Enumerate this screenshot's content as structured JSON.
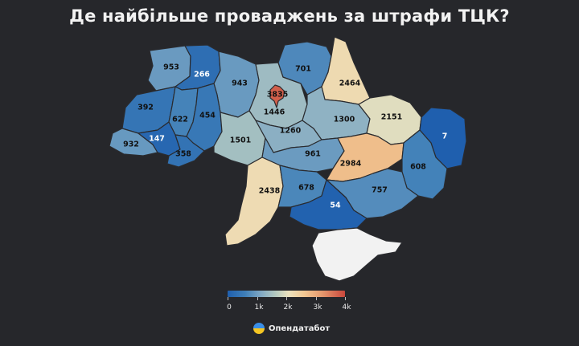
{
  "title": "Де найбільше проваджень за штрафи ТЦК?",
  "colors": {
    "scale": [
      "#1f5fae",
      "#3f7fb8",
      "#7fa8c4",
      "#b9ccc0",
      "#ece2bf",
      "#f2c893",
      "#e59a6f",
      "#c9473c"
    ],
    "no_data": "#f2f2f2",
    "background": "#26272b"
  },
  "legend": {
    "min": 0,
    "max": 4000,
    "ticks": [
      {
        "value": 0,
        "label": "0"
      },
      {
        "value": 1000,
        "label": "1k"
      },
      {
        "value": 2000,
        "label": "2k"
      },
      {
        "value": 3000,
        "label": "3k"
      },
      {
        "value": 4000,
        "label": "4k"
      }
    ]
  },
  "regions": [
    {
      "id": "volyn",
      "value": 953,
      "label": "953"
    },
    {
      "id": "rivne",
      "value": 266,
      "label": "266"
    },
    {
      "id": "zhytomyr",
      "value": 943,
      "label": "943"
    },
    {
      "id": "kyiv-oblast",
      "value": 1446,
      "label": "1446"
    },
    {
      "id": "kyiv-city",
      "value": 3835,
      "label": "3835"
    },
    {
      "id": "chernihiv",
      "value": 701,
      "label": "701"
    },
    {
      "id": "sumy",
      "value": 2464,
      "label": "2464"
    },
    {
      "id": "lviv",
      "value": 392,
      "label": "392"
    },
    {
      "id": "ternopil",
      "value": 622,
      "label": "622"
    },
    {
      "id": "khmelnytskyi",
      "value": 454,
      "label": "454"
    },
    {
      "id": "vinnytsia",
      "value": 1501,
      "label": "1501"
    },
    {
      "id": "cherkasy",
      "value": 1260,
      "label": "1260"
    },
    {
      "id": "poltava",
      "value": 1300,
      "label": "1300"
    },
    {
      "id": "kharkiv",
      "value": 2151,
      "label": "2151"
    },
    {
      "id": "luhansk",
      "value": 7,
      "label": "7"
    },
    {
      "id": "zakarpattia",
      "value": 932,
      "label": "932"
    },
    {
      "id": "ivano-frankivsk",
      "value": 147,
      "label": "147"
    },
    {
      "id": "chernivtsi",
      "value": 358,
      "label": "358"
    },
    {
      "id": "kirovohrad",
      "value": 961,
      "label": "961"
    },
    {
      "id": "dnipropetrovsk",
      "value": 2984,
      "label": "2984"
    },
    {
      "id": "donetsk",
      "value": 608,
      "label": "608"
    },
    {
      "id": "odesa",
      "value": 2438,
      "label": "2438"
    },
    {
      "id": "mykolaiv",
      "value": 678,
      "label": "678"
    },
    {
      "id": "zaporizhzhia",
      "value": 757,
      "label": "757"
    },
    {
      "id": "kherson",
      "value": 54,
      "label": "54"
    },
    {
      "id": "crimea",
      "value": null,
      "label": ""
    }
  ],
  "brand": {
    "name": "Опендатабот",
    "colors": {
      "top": "#3a8ee6",
      "bottom": "#f5c623"
    }
  }
}
